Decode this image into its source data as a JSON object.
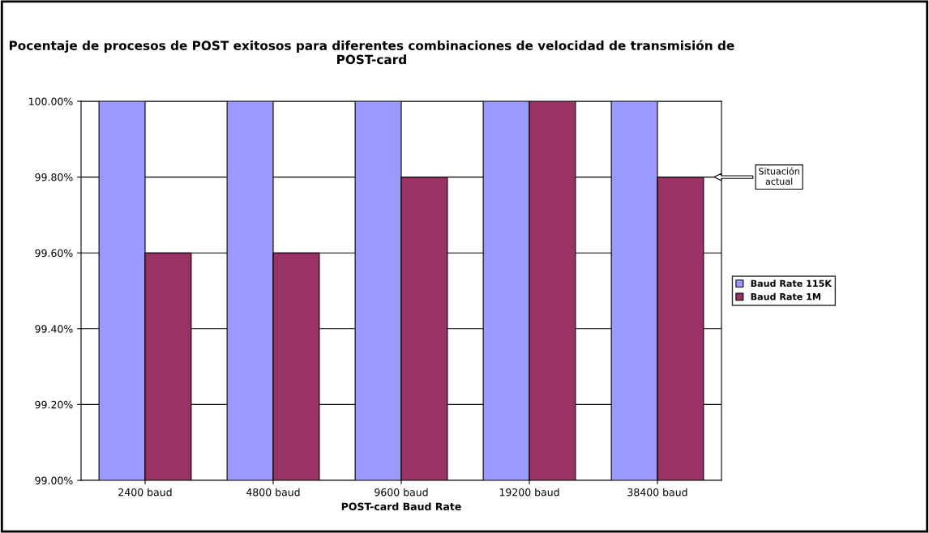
{
  "chart_data": {
    "type": "bar",
    "title": "Pocentaje de procesos de POST exitosos para diferentes combinaciones de velocidad de transmisión de POST-card",
    "xlabel": "POST-card Baud Rate",
    "categories": [
      "2400 baud",
      "4800 baud",
      "9600 baud",
      "19200 baud",
      "38400 baud"
    ],
    "series": [
      {
        "name": "Baud Rate 115K",
        "color": "#9999ff",
        "values": [
          100,
          100,
          100,
          100,
          100
        ]
      },
      {
        "name": "Baud Rate 1M",
        "color": "#993366",
        "values": [
          99.6,
          99.6,
          99.8,
          100,
          99.8
        ]
      }
    ],
    "ylim": [
      99,
      100
    ],
    "yticks": [
      {
        "value": 99,
        "label": "99.00%"
      },
      {
        "value": 99.2,
        "label": "99.20%"
      },
      {
        "value": 99.4,
        "label": "99.40%"
      },
      {
        "value": 99.6,
        "label": "99.60%"
      },
      {
        "value": 99.8,
        "label": "99.80%"
      },
      {
        "value": 100,
        "label": "100.00%"
      }
    ],
    "grid": "y",
    "legend": "right",
    "annotations": [
      "Situación\nactual"
    ]
  }
}
